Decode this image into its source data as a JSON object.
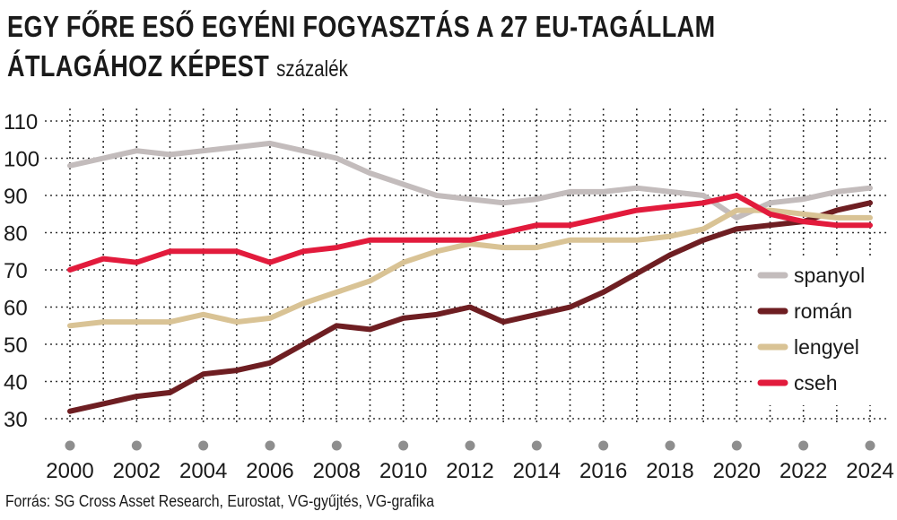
{
  "title_line1": "EGY FŐRE ESŐ EGYÉNI FOGYASZTÁS A 27 EU-TAGÁLLAM",
  "title_line2": "ÁTLAGÁHOZ KÉPEST",
  "unit": "százalék",
  "source": "Forrás: SG Cross Asset Research, Eurostat, VG-gyűjtés, VG-grafika",
  "chart_data": {
    "type": "line",
    "title": "EGY FŐRE ESŐ EGYÉNI FOGYASZTÁS A 27 EU-TAGÁLLAM ÁTLAGÁHOZ KÉPEST",
    "ylabel": "százalék",
    "xlabel": "",
    "ylim": [
      30,
      110
    ],
    "xlim": [
      2000,
      2024
    ],
    "yticks": [
      30,
      40,
      50,
      60,
      70,
      80,
      90,
      100,
      110
    ],
    "xticks": [
      2000,
      2002,
      2004,
      2006,
      2008,
      2010,
      2012,
      2014,
      2016,
      2018,
      2020,
      2022,
      2024
    ],
    "grid": "dotted",
    "legend_position": "right",
    "x": [
      2000,
      2001,
      2002,
      2003,
      2004,
      2005,
      2006,
      2007,
      2008,
      2009,
      2010,
      2011,
      2012,
      2013,
      2014,
      2015,
      2016,
      2017,
      2018,
      2019,
      2020,
      2021,
      2022,
      2023,
      2024
    ],
    "series": [
      {
        "name": "spanyol",
        "color": "#c3bcbc",
        "values": [
          98,
          100,
          102,
          101,
          102,
          103,
          104,
          102,
          100,
          96,
          93,
          90,
          89,
          88,
          89,
          91,
          91,
          92,
          91,
          90,
          84,
          88,
          89,
          91,
          92
        ]
      },
      {
        "name": "román",
        "color": "#6e1e22",
        "values": [
          32,
          34,
          36,
          37,
          42,
          43,
          45,
          50,
          55,
          54,
          57,
          58,
          60,
          56,
          58,
          60,
          64,
          69,
          74,
          78,
          81,
          82,
          83,
          86,
          88
        ]
      },
      {
        "name": "lengyel",
        "color": "#d9c395",
        "values": [
          55,
          56,
          56,
          56,
          58,
          56,
          57,
          61,
          64,
          67,
          72,
          75,
          77,
          76,
          76,
          78,
          78,
          78,
          79,
          81,
          86,
          86,
          85,
          84,
          84
        ]
      },
      {
        "name": "cseh",
        "color": "#e21b3c",
        "values": [
          70,
          73,
          72,
          75,
          75,
          75,
          72,
          75,
          76,
          78,
          78,
          78,
          78,
          80,
          82,
          82,
          84,
          86,
          87,
          88,
          90,
          85,
          83,
          82,
          82
        ]
      }
    ]
  }
}
